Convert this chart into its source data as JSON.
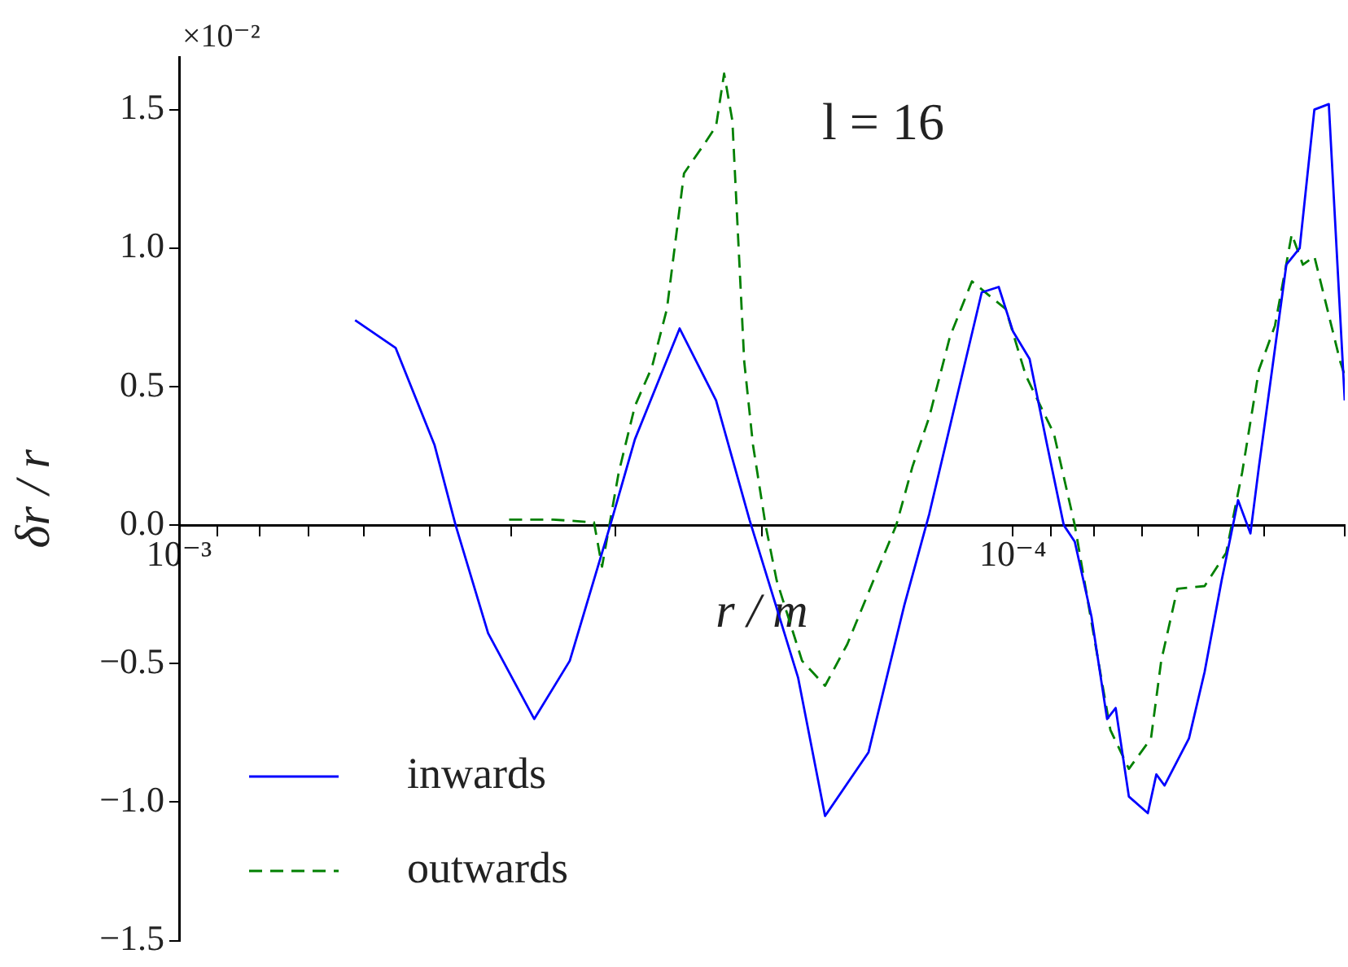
{
  "chart_data": {
    "type": "line",
    "xlabel": "r / m",
    "ylabel": "δr / r",
    "annotations": [
      "×10⁻²",
      "l = 16"
    ],
    "log": "x",
    "grid": false,
    "legend": "bottom left",
    "marker": "none",
    "xlim": [
      0.001,
      4e-05
    ],
    "ylim": [
      -1.5,
      1.69
    ],
    "xticks": [
      {
        "value": 0.001,
        "label": "10⁻³"
      },
      {
        "value": 0.0009,
        "label": null
      },
      {
        "value": 0.0008,
        "label": null
      },
      {
        "value": 0.0007,
        "label": null
      },
      {
        "value": 0.0006,
        "label": null
      },
      {
        "value": 0.0005,
        "label": null
      },
      {
        "value": 0.0004,
        "label": null
      },
      {
        "value": 0.0003,
        "label": null
      },
      {
        "value": 0.0002,
        "label": null
      },
      {
        "value": 0.0001,
        "label": "10⁻⁴"
      },
      {
        "value": 9e-05,
        "label": null
      },
      {
        "value": 8e-05,
        "label": null
      },
      {
        "value": 7e-05,
        "label": null
      },
      {
        "value": 6e-05,
        "label": null
      },
      {
        "value": 5e-05,
        "label": null
      },
      {
        "value": 4e-05,
        "label": null
      }
    ],
    "yticks": [
      -1.5,
      {
        "value": -1,
        "label": "−1.0"
      },
      -0.5,
      {
        "value": 0,
        "label": "0.0"
      },
      0.5,
      {
        "value": 1,
        "label": "1.0"
      },
      1.5
    ],
    "series": [
      {
        "name": "inwards",
        "color": "#0000ff",
        "line_style": "solid",
        "x": [
          0.000615,
          0.00055,
          0.000494,
          0.000466,
          0.000426,
          0.000375,
          0.00034,
          0.000304,
          0.000284,
          0.000251,
          0.000227,
          0.000207,
          0.000181,
          0.000168,
          0.000149,
          0.000135,
          0.000126,
          0.000117,
          0.000109,
          0.000104,
          0.0001,
          9.55e-05,
          9.1e-05,
          8.69e-05,
          8.43e-05,
          8.05e-05,
          7.71e-05,
          7.53e-05,
          7.26e-05,
          6.89e-05,
          6.73e-05,
          6.58e-05,
          6.15e-05,
          5.89e-05,
          5.62e-05,
          5.37e-05,
          5.19e-05,
          5.07e-05,
          4.7e-05,
          4.53e-05,
          4.35e-05,
          4.18e-05,
          4e-05
        ],
        "values": [
          0.74,
          0.64,
          0.29,
          0,
          -0.39,
          -0.7,
          -0.49,
          0,
          0.31,
          0.71,
          0.45,
          0.02,
          -0.55,
          -1.05,
          -0.82,
          -0.29,
          0.04,
          0.45,
          0.84,
          0.86,
          0.7,
          0.6,
          0.29,
          0,
          -0.06,
          -0.33,
          -0.7,
          -0.66,
          -0.98,
          -1.04,
          -0.9,
          -0.94,
          -0.77,
          -0.53,
          -0.2,
          0.09,
          -0.03,
          0.21,
          0.94,
          1,
          1.5,
          1.52,
          0.45
        ]
      },
      {
        "name": "outwards",
        "color": "#008000",
        "line_style": "dashed",
        "x": [
          0.000402,
          0.000356,
          0.000318,
          0.000311,
          0.000297,
          0.000284,
          0.000271,
          0.00026,
          0.000248,
          0.000234,
          0.000227,
          0.000222,
          0.000217,
          0.00021,
          0.000205,
          0.000198,
          0.000192,
          0.000179,
          0.000168,
          0.000158,
          0.000147,
          0.000138,
          0.000132,
          0.000126,
          0.000119,
          0.000112,
          0.000102,
          9.65e-05,
          8.93e-05,
          8.43e-05,
          8.05e-05,
          7.64e-05,
          7.26e-05,
          6.83e-05,
          6.64e-05,
          6.35e-05,
          5.89e-05,
          5.55e-05,
          5.31e-05,
          5.07e-05,
          4.85e-05,
          4.63e-05,
          4.49e-05,
          4.35e-05,
          4.05e-05,
          4e-05
        ],
        "values": [
          0.02,
          0.02,
          0.01,
          -0.15,
          0.19,
          0.43,
          0.57,
          0.78,
          1.27,
          1.38,
          1.44,
          1.63,
          1.46,
          0.59,
          0.29,
          0,
          -0.2,
          -0.49,
          -0.58,
          -0.43,
          -0.2,
          0,
          0.21,
          0.39,
          0.68,
          0.88,
          0.78,
          0.54,
          0.33,
          0,
          -0.35,
          -0.74,
          -0.88,
          -0.77,
          -0.49,
          -0.23,
          -0.22,
          -0.1,
          0.19,
          0.56,
          0.72,
          1.05,
          0.94,
          0.97,
          0.59,
          0.54
        ]
      }
    ]
  }
}
